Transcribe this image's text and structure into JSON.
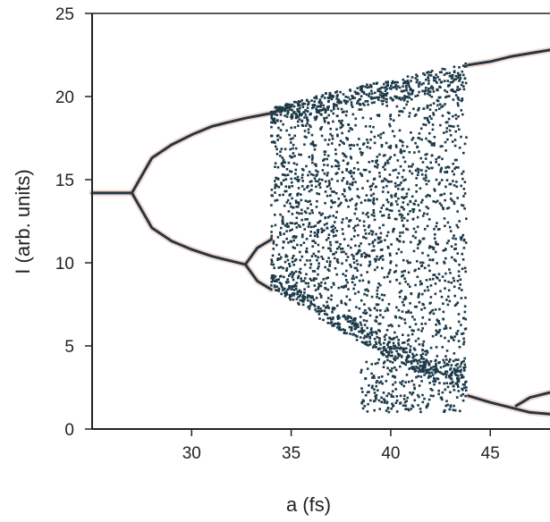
{
  "chart_data": {
    "type": "scatter",
    "title": "",
    "xlabel": "a (fs)",
    "ylabel": "I (arb. units)",
    "xlim": [
      25,
      48
    ],
    "ylim": [
      0,
      25
    ],
    "x_ticks": [
      30,
      35,
      40,
      45
    ],
    "y_ticks": [
      0,
      5,
      10,
      15,
      20,
      25
    ],
    "x_tick_labels": [
      "30",
      "35",
      "40",
      "45"
    ],
    "y_tick_labels": [
      "0",
      "5",
      "10",
      "15",
      "20",
      "25"
    ],
    "grid": false,
    "legend": "none",
    "point_color": "#1d3a4a",
    "glow_color": "#f4b7a4",
    "fixed_point": {
      "x_range": [
        25,
        27.0
      ],
      "y": 14.2
    },
    "period_doubling_1": {
      "a": 27.0,
      "y": 14.2
    },
    "upper_branch": [
      {
        "x": 27.0,
        "y": 14.2
      },
      {
        "x": 28.0,
        "y": 16.3
      },
      {
        "x": 29.0,
        "y": 17.1
      },
      {
        "x": 30.0,
        "y": 17.7
      },
      {
        "x": 31.0,
        "y": 18.2
      },
      {
        "x": 32.0,
        "y": 18.5
      },
      {
        "x": 32.7,
        "y": 18.7
      },
      {
        "x": 34.0,
        "y": 19.0
      },
      {
        "x": 35.0,
        "y": 19.4
      }
    ],
    "lower_branch": [
      {
        "x": 27.0,
        "y": 14.2
      },
      {
        "x": 28.0,
        "y": 12.1
      },
      {
        "x": 29.0,
        "y": 11.3
      },
      {
        "x": 30.0,
        "y": 10.8
      },
      {
        "x": 31.0,
        "y": 10.4
      },
      {
        "x": 32.0,
        "y": 10.1
      },
      {
        "x": 32.7,
        "y": 9.9
      }
    ],
    "split_lower_high": [
      {
        "x": 32.7,
        "y": 9.9
      },
      {
        "x": 33.3,
        "y": 10.9
      },
      {
        "x": 34.0,
        "y": 11.4
      }
    ],
    "split_lower_low": [
      {
        "x": 32.7,
        "y": 9.9
      },
      {
        "x": 33.3,
        "y": 8.9
      },
      {
        "x": 34.0,
        "y": 8.4
      }
    ],
    "chaos_envelope": {
      "x_range": [
        34.0,
        43.8
      ],
      "upper": [
        {
          "x": 34.0,
          "y": 19.3
        },
        {
          "x": 37.0,
          "y": 20.3
        },
        {
          "x": 40.0,
          "y": 21.0
        },
        {
          "x": 43.8,
          "y": 22.0
        }
      ],
      "lower": [
        {
          "x": 34.0,
          "y": 8.5
        },
        {
          "x": 37.0,
          "y": 6.2
        },
        {
          "x": 40.0,
          "y": 4.2
        },
        {
          "x": 43.8,
          "y": 2.2
        }
      ],
      "bottom_cluster": {
        "x_range": [
          38.5,
          43.8
        ],
        "y_range": [
          1.0,
          4.2
        ]
      }
    },
    "post_window_upper": [
      {
        "x": 43.9,
        "y": 21.9
      },
      {
        "x": 45.0,
        "y": 22.1
      },
      {
        "x": 46.0,
        "y": 22.4
      },
      {
        "x": 47.0,
        "y": 22.6
      },
      {
        "x": 48.0,
        "y": 22.8
      }
    ],
    "post_window_lower": [
      {
        "x": 43.9,
        "y": 2.0
      },
      {
        "x": 45.0,
        "y": 1.6
      },
      {
        "x": 46.0,
        "y": 1.3
      },
      {
        "x": 47.0,
        "y": 1.0
      },
      {
        "x": 48.0,
        "y": 0.9
      }
    ],
    "post_window_lower_split": [
      {
        "x": 46.3,
        "y": 1.4
      },
      {
        "x": 47.0,
        "y": 1.9
      },
      {
        "x": 48.0,
        "y": 2.2
      }
    ]
  }
}
